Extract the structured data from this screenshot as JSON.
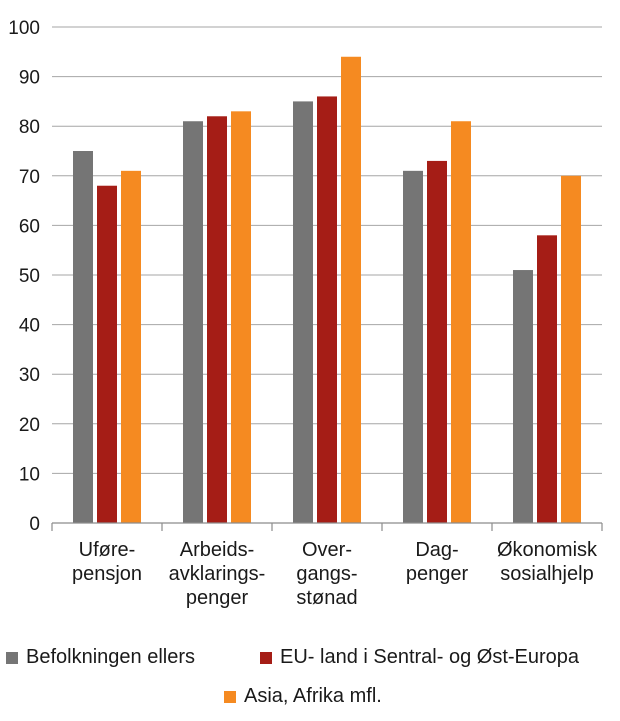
{
  "chart_data": {
    "type": "bar",
    "title": "",
    "xlabel": "",
    "ylabel": "",
    "ylim": [
      0,
      100
    ],
    "yticks": [
      0,
      10,
      20,
      30,
      40,
      50,
      60,
      70,
      80,
      90,
      100
    ],
    "grid": true,
    "legend_position": "bottom",
    "categories": [
      [
        "Uføre-",
        "pensjon"
      ],
      [
        "Arbeids-",
        "avklarings-",
        "penger"
      ],
      [
        "Over-",
        "gangs-",
        "stønad"
      ],
      [
        "Dag-",
        "penger"
      ],
      [
        "Økonomisk",
        "sosialhjelp"
      ]
    ],
    "series": [
      {
        "name": "Befolkningen ellers",
        "color": "#757575",
        "values": [
          75,
          81,
          85,
          71,
          51
        ]
      },
      {
        "name": "EU- land i Sentral- og Øst-Europa",
        "color": "#a51d16",
        "values": [
          68,
          82,
          86,
          73,
          58
        ]
      },
      {
        "name": "Asia, Afrika mfl.",
        "color": "#f58a21",
        "values": [
          71,
          83,
          94,
          81,
          70
        ]
      }
    ]
  }
}
